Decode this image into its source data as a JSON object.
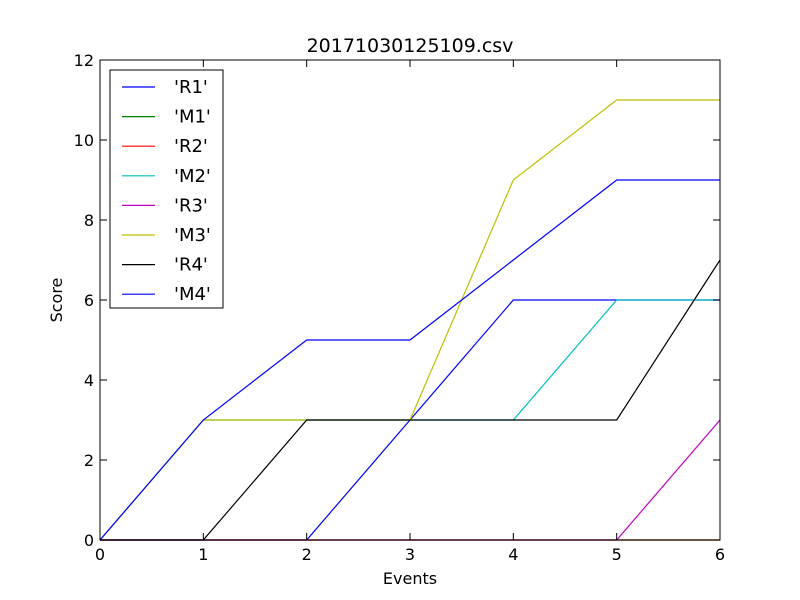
{
  "chart_data": {
    "type": "line",
    "title": "20171030125109.csv",
    "xlabel": "Events",
    "ylabel": "Score",
    "xlim": [
      0,
      6
    ],
    "ylim": [
      0,
      12
    ],
    "xticks": [
      "0",
      "1",
      "2",
      "3",
      "4",
      "5",
      "6"
    ],
    "yticks": [
      "0",
      "2",
      "4",
      "6",
      "8",
      "10",
      "12"
    ],
    "grid": false,
    "legend_position": "top-left",
    "x": [
      0,
      1,
      2,
      3,
      4,
      5,
      6
    ],
    "series": [
      {
        "name": "'R1'",
        "color": "#0000ff",
        "values": [
          0,
          0,
          0,
          3,
          6,
          6,
          6
        ]
      },
      {
        "name": "'M1'",
        "color": "#008000",
        "values": [
          0,
          0,
          0,
          0,
          0,
          0,
          0
        ]
      },
      {
        "name": "'R2'",
        "color": "#ff0000",
        "values": [
          0,
          0,
          0,
          0,
          0,
          0,
          0
        ]
      },
      {
        "name": "'M2'",
        "color": "#00bfbf",
        "values": [
          0,
          3,
          3,
          3,
          3,
          6,
          6
        ]
      },
      {
        "name": "'R3'",
        "color": "#bf00bf",
        "values": [
          0,
          0,
          0,
          0,
          0,
          0,
          3
        ]
      },
      {
        "name": "'M3'",
        "color": "#bfbf00",
        "values": [
          0,
          3,
          3,
          3,
          9,
          11,
          11
        ]
      },
      {
        "name": "'R4'",
        "color": "#000000",
        "values": [
          0,
          0,
          3,
          3,
          3,
          3,
          7
        ]
      },
      {
        "name": "'M4'",
        "color": "#0000ff",
        "values": [
          0,
          3,
          5,
          5,
          7,
          9,
          9
        ]
      }
    ]
  }
}
